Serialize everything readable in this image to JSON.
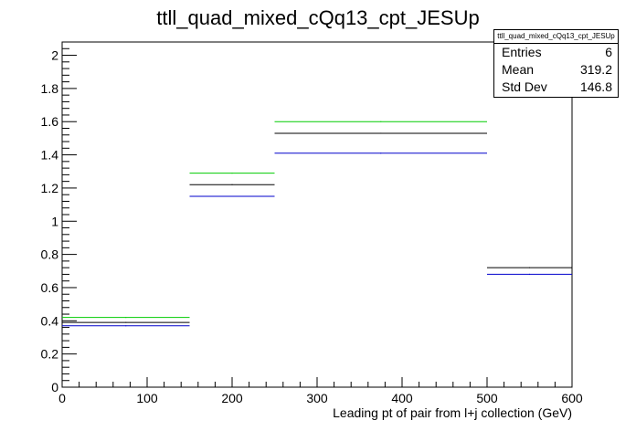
{
  "chart_data": {
    "type": "line",
    "title": "ttll_quad_mixed_cQq13_cpt_JESUp",
    "xlabel": "Leading pt of pair from l+j collection (GeV)",
    "ylabel": "",
    "xlim": [
      0,
      600
    ],
    "ylim": [
      0,
      2.08
    ],
    "x_ticks": [
      0,
      100,
      200,
      300,
      400,
      500,
      600
    ],
    "y_ticks": [
      0,
      0.2,
      0.4,
      0.6,
      0.8,
      1,
      1.2,
      1.4,
      1.6,
      1.8,
      2
    ],
    "x_tick_labels": [
      "0",
      "100",
      "200",
      "300",
      "400",
      "500",
      "600"
    ],
    "y_tick_labels": [
      "0",
      "0.2",
      "0.4",
      "0.6",
      "0.8",
      "1",
      "1.2",
      "1.4",
      "1.6",
      "1.8",
      "2"
    ],
    "bin_edges": [
      0,
      150,
      250,
      500,
      600
    ],
    "series": [
      {
        "color": "#00cc00",
        "values": [
          0.42,
          1.29,
          1.6,
          null
        ]
      },
      {
        "color": "#000000",
        "values": [
          0.39,
          1.22,
          1.53,
          0.72
        ]
      },
      {
        "color": "#0000cc",
        "values": [
          0.37,
          1.15,
          1.41,
          0.68
        ]
      }
    ],
    "grid": false,
    "stats_box": {
      "title": "ttll_quad_mixed_cQq13_cpt_JESUp",
      "rows": [
        {
          "label": "Entries",
          "value": "6"
        },
        {
          "label": "Mean",
          "value": "319.2"
        },
        {
          "label": "Std Dev",
          "value": "146.8"
        }
      ]
    }
  }
}
